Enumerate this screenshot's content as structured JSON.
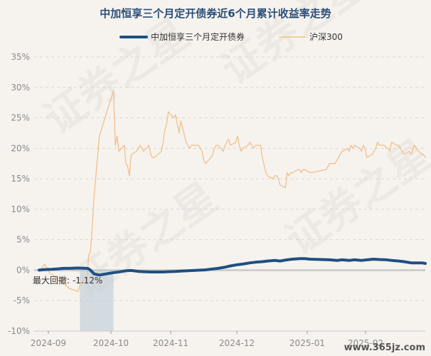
{
  "chart_data": {
    "type": "line",
    "title": "中加恒享三个月定开债券近6个月累计收益率走势",
    "ylim": [
      -10,
      35
    ],
    "y_ticks": [
      "35%",
      "30%",
      "25%",
      "20%",
      "15%",
      "10%",
      "5%",
      "0%",
      "-5%",
      "-10%"
    ],
    "x_ticks": [
      "2024-09",
      "2024-10",
      "2024-11",
      "2024-12",
      "2025-01",
      "2025-02"
    ],
    "grid": true,
    "legend_position": "top",
    "annotation": "最大回撤: -1.12%",
    "watermark": "证券之星",
    "footer": "www.365jz.com",
    "colors": {
      "fund": "#1f4f82",
      "index": "#f2bf8a",
      "drawdown": "#b8c7d6",
      "zero": "#c8c8c8",
      "grid": "#d6d6d6"
    },
    "series": [
      {
        "name": "中加恒享三个月定开债券",
        "color": "#1f4f82",
        "points": [
          [
            "2024-08-27",
            0.0
          ],
          [
            "2024-08-30",
            0.1
          ],
          [
            "2024-09-03",
            0.15
          ],
          [
            "2024-09-06",
            0.2
          ],
          [
            "2024-09-10",
            0.3
          ],
          [
            "2024-09-13",
            0.3
          ],
          [
            "2024-09-18",
            0.35
          ],
          [
            "2024-09-23",
            0.3
          ],
          [
            "2024-09-24",
            0.2
          ],
          [
            "2024-09-25",
            0.0
          ],
          [
            "2024-09-26",
            -0.3
          ],
          [
            "2024-09-27",
            -0.6
          ],
          [
            "2024-09-30",
            -0.8
          ],
          [
            "2024-10-08",
            -0.4
          ],
          [
            "2024-10-11",
            -0.3
          ],
          [
            "2024-10-15",
            -0.1
          ],
          [
            "2024-10-18",
            -0.05
          ],
          [
            "2024-10-22",
            -0.2
          ],
          [
            "2024-10-25",
            -0.25
          ],
          [
            "2024-10-29",
            -0.3
          ],
          [
            "2024-11-01",
            -0.3
          ],
          [
            "2024-11-05",
            -0.3
          ],
          [
            "2024-11-08",
            -0.25
          ],
          [
            "2024-11-12",
            -0.2
          ],
          [
            "2024-11-15",
            -0.15
          ],
          [
            "2024-11-19",
            -0.1
          ],
          [
            "2024-11-22",
            -0.05
          ],
          [
            "2024-11-26",
            0.0
          ],
          [
            "2024-11-29",
            0.05
          ],
          [
            "2024-12-03",
            0.2
          ],
          [
            "2024-12-06",
            0.3
          ],
          [
            "2024-12-10",
            0.5
          ],
          [
            "2024-12-13",
            0.7
          ],
          [
            "2024-12-17",
            0.9
          ],
          [
            "2024-12-20",
            1.0
          ],
          [
            "2024-12-24",
            1.2
          ],
          [
            "2024-12-27",
            1.3
          ],
          [
            "2024-12-31",
            1.4
          ],
          [
            "2025-01-03",
            1.5
          ],
          [
            "2025-01-07",
            1.6
          ],
          [
            "2025-01-10",
            1.5
          ],
          [
            "2025-01-14",
            1.7
          ],
          [
            "2025-01-17",
            1.8
          ],
          [
            "2025-01-21",
            1.9
          ],
          [
            "2025-01-24",
            1.9
          ],
          [
            "2025-01-27",
            1.8
          ],
          [
            "2025-02-07",
            1.7
          ],
          [
            "2025-02-11",
            1.6
          ],
          [
            "2025-02-14",
            1.7
          ],
          [
            "2025-02-18",
            1.6
          ],
          [
            "2025-02-21",
            1.7
          ],
          [
            "2025-02-25",
            1.6
          ],
          [
            "2025-02-28",
            1.7
          ],
          [
            "2025-03-04",
            1.8
          ],
          [
            "2025-03-07",
            1.75
          ],
          [
            "2025-03-11",
            1.7
          ],
          [
            "2025-03-14",
            1.6
          ],
          [
            "2025-03-18",
            1.5
          ],
          [
            "2025-03-21",
            1.4
          ],
          [
            "2025-03-25",
            1.2
          ],
          [
            "2025-03-28",
            1.2
          ],
          [
            "2025-03-31",
            1.2
          ],
          [
            "2025-04-02",
            1.1
          ]
        ]
      },
      {
        "name": "沪深300",
        "color": "#f2bf8a",
        "points": [
          [
            "2024-08-27",
            0.0
          ],
          [
            "2024-08-29",
            0.5
          ],
          [
            "2024-08-30",
            1.0
          ],
          [
            "2024-09-02",
            -0.5
          ],
          [
            "2024-09-04",
            -0.8
          ],
          [
            "2024-09-06",
            -1.5
          ],
          [
            "2024-09-09",
            -2.0
          ],
          [
            "2024-09-11",
            -2.5
          ],
          [
            "2024-09-13",
            -3.0
          ],
          [
            "2024-09-18",
            -3.5
          ],
          [
            "2024-09-19",
            -2.5
          ],
          [
            "2024-09-20",
            -2.0
          ],
          [
            "2024-09-23",
            -1.5
          ],
          [
            "2024-09-24",
            2.5
          ],
          [
            "2024-09-25",
            3.0
          ],
          [
            "2024-09-26",
            7.0
          ],
          [
            "2024-09-27",
            12.0
          ],
          [
            "2024-09-30",
            22.0
          ],
          [
            "2024-10-08",
            29.5
          ],
          [
            "2024-10-09",
            20.5
          ],
          [
            "2024-10-10",
            22.0
          ],
          [
            "2024-10-11",
            19.5
          ],
          [
            "2024-10-14",
            20.5
          ],
          [
            "2024-10-15",
            17.5
          ],
          [
            "2024-10-16",
            17.0
          ],
          [
            "2024-10-17",
            15.5
          ],
          [
            "2024-10-18",
            19.0
          ],
          [
            "2024-10-21",
            19.5
          ],
          [
            "2024-10-22",
            20.0
          ],
          [
            "2024-10-23",
            20.5
          ],
          [
            "2024-10-24",
            20.0
          ],
          [
            "2024-10-25",
            19.5
          ],
          [
            "2024-10-28",
            20.5
          ],
          [
            "2024-10-29",
            19.0
          ],
          [
            "2024-10-30",
            18.5
          ],
          [
            "2024-10-31",
            18.5
          ],
          [
            "2024-11-04",
            19.5
          ],
          [
            "2024-11-05",
            21.0
          ],
          [
            "2024-11-06",
            23.0
          ],
          [
            "2024-11-07",
            24.0
          ],
          [
            "2024-11-08",
            26.0
          ],
          [
            "2024-11-11",
            25.0
          ],
          [
            "2024-11-12",
            25.5
          ],
          [
            "2024-11-13",
            24.0
          ],
          [
            "2024-11-14",
            22.5
          ],
          [
            "2024-11-15",
            24.5
          ],
          [
            "2024-11-18",
            21.0
          ],
          [
            "2024-11-19",
            20.5
          ],
          [
            "2024-11-20",
            20.0
          ],
          [
            "2024-11-21",
            20.5
          ],
          [
            "2024-11-22",
            20.5
          ],
          [
            "2024-11-25",
            20.5
          ],
          [
            "2024-11-26",
            20.0
          ],
          [
            "2024-11-27",
            19.5
          ],
          [
            "2024-11-28",
            18.0
          ],
          [
            "2024-11-29",
            17.5
          ],
          [
            "2024-12-02",
            18.5
          ],
          [
            "2024-12-03",
            19.0
          ],
          [
            "2024-12-04",
            20.0
          ],
          [
            "2024-12-05",
            20.5
          ],
          [
            "2024-12-06",
            20.5
          ],
          [
            "2024-12-09",
            19.5
          ],
          [
            "2024-12-10",
            20.5
          ],
          [
            "2024-12-11",
            21.0
          ],
          [
            "2024-12-12",
            21.5
          ],
          [
            "2024-12-13",
            20.5
          ],
          [
            "2024-12-16",
            21.0
          ],
          [
            "2024-12-17",
            22.0
          ],
          [
            "2024-12-18",
            20.5
          ],
          [
            "2024-12-19",
            19.5
          ],
          [
            "2024-12-20",
            20.0
          ],
          [
            "2024-12-23",
            20.5
          ],
          [
            "2024-12-24",
            21.0
          ],
          [
            "2024-12-25",
            20.5
          ],
          [
            "2024-12-26",
            20.0
          ],
          [
            "2024-12-27",
            20.5
          ],
          [
            "2024-12-30",
            20.5
          ],
          [
            "2024-12-31",
            18.5
          ],
          [
            "2025-01-02",
            16.0
          ],
          [
            "2025-01-03",
            15.5
          ],
          [
            "2025-01-06",
            15.0
          ],
          [
            "2025-01-07",
            15.5
          ],
          [
            "2025-01-08",
            15.5
          ],
          [
            "2025-01-09",
            15.0
          ],
          [
            "2025-01-10",
            14.0
          ],
          [
            "2025-01-13",
            13.5
          ],
          [
            "2025-01-14",
            16.0
          ],
          [
            "2025-01-15",
            15.5
          ],
          [
            "2025-01-16",
            16.0
          ],
          [
            "2025-01-17",
            16.0
          ],
          [
            "2025-01-20",
            16.5
          ],
          [
            "2025-01-21",
            16.5
          ],
          [
            "2025-01-22",
            16.0
          ],
          [
            "2025-01-23",
            16.5
          ],
          [
            "2025-01-24",
            16.5
          ],
          [
            "2025-01-27",
            16.0
          ],
          [
            "2025-02-05",
            16.5
          ],
          [
            "2025-02-06",
            17.0
          ],
          [
            "2025-02-07",
            17.5
          ],
          [
            "2025-02-10",
            17.5
          ],
          [
            "2025-02-11",
            18.0
          ],
          [
            "2025-02-12",
            18.5
          ],
          [
            "2025-02-13",
            19.0
          ],
          [
            "2025-02-14",
            19.5
          ],
          [
            "2025-02-17",
            20.0
          ],
          [
            "2025-02-18",
            19.5
          ],
          [
            "2025-02-19",
            20.5
          ],
          [
            "2025-02-20",
            20.0
          ],
          [
            "2025-02-21",
            20.5
          ],
          [
            "2025-02-24",
            20.0
          ],
          [
            "2025-02-25",
            19.5
          ],
          [
            "2025-02-26",
            20.5
          ],
          [
            "2025-02-27",
            20.0
          ],
          [
            "2025-02-28",
            18.5
          ],
          [
            "2025-03-03",
            19.0
          ],
          [
            "2025-03-04",
            19.5
          ],
          [
            "2025-03-05",
            20.0
          ],
          [
            "2025-03-06",
            21.0
          ],
          [
            "2025-03-07",
            20.5
          ],
          [
            "2025-03-10",
            20.5
          ],
          [
            "2025-03-11",
            20.0
          ],
          [
            "2025-03-12",
            20.0
          ],
          [
            "2025-03-13",
            19.5
          ],
          [
            "2025-03-14",
            21.0
          ],
          [
            "2025-03-17",
            20.5
          ],
          [
            "2025-03-18",
            20.5
          ],
          [
            "2025-03-19",
            20.0
          ],
          [
            "2025-03-20",
            19.5
          ],
          [
            "2025-03-21",
            19.0
          ],
          [
            "2025-03-24",
            19.5
          ],
          [
            "2025-03-25",
            19.0
          ],
          [
            "2025-03-26",
            20.0
          ],
          [
            "2025-03-27",
            20.5
          ],
          [
            "2025-03-28",
            20.0
          ],
          [
            "2025-03-31",
            19.0
          ],
          [
            "2025-04-01",
            19.0
          ],
          [
            "2025-04-02",
            18.5
          ]
        ]
      }
    ],
    "drawdown_period": [
      "2024-09-19",
      "2024-10-08"
    ]
  }
}
